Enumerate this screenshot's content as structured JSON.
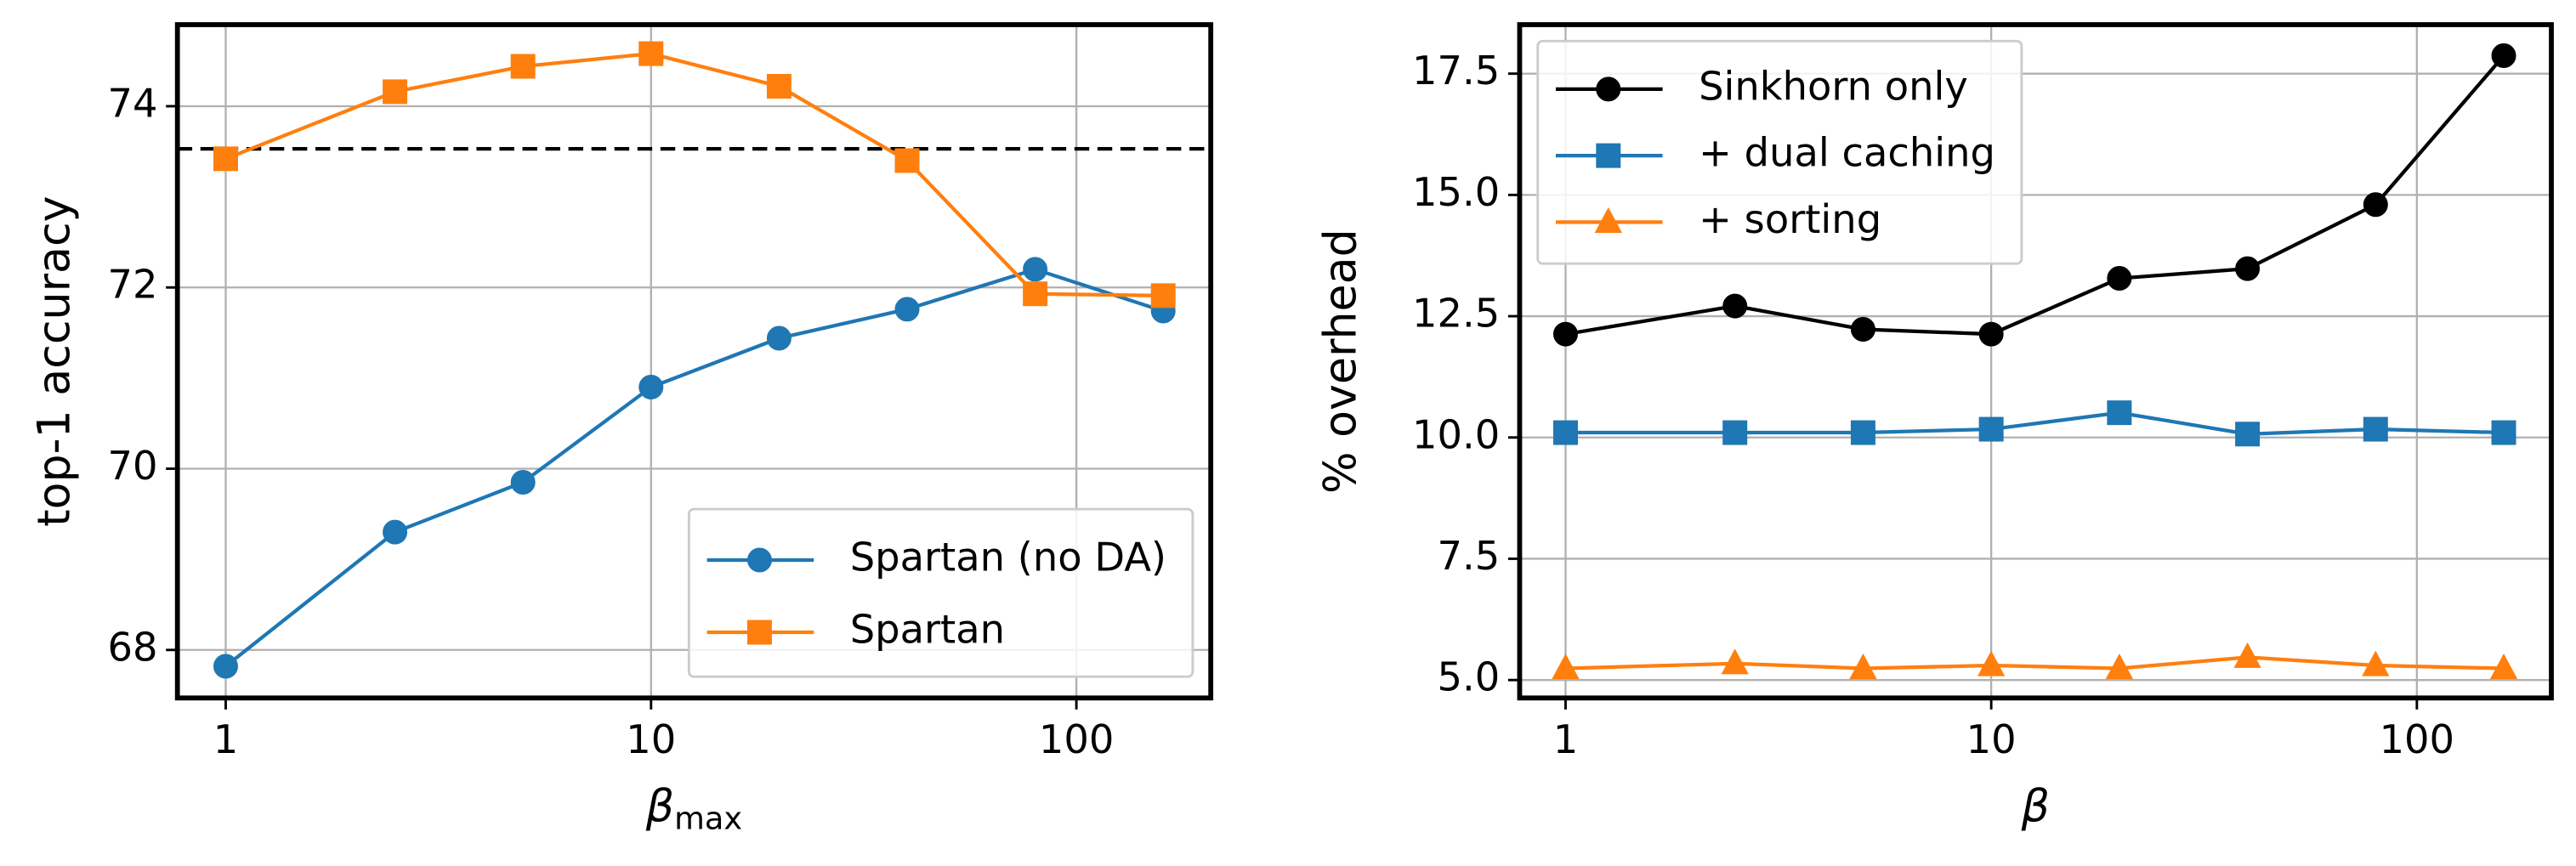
{
  "chart_data": [
    {
      "type": "line",
      "xscale": "log",
      "grid": true,
      "legend": "lower right",
      "ylabel": "top-1 accuracy",
      "xlabel": "β",
      "xlabel_subscript": "max",
      "x": [
        1,
        2.5,
        5,
        10,
        20,
        40,
        80,
        160
      ],
      "xlim": [
        0.77,
        207
      ],
      "xticks": [
        1,
        10,
        100
      ],
      "ylim": [
        67.47,
        74.9
      ],
      "yticks": [
        68,
        70,
        72,
        74
      ],
      "hline": 73.53,
      "series": [
        {
          "name": "Spartan (no DA)",
          "color": "#1f77b4",
          "marker": "o",
          "values": [
            67.82,
            69.3,
            69.85,
            70.9,
            71.44,
            71.76,
            72.2,
            71.74
          ]
        },
        {
          "name": "Spartan",
          "color": "#ff7f0e",
          "marker": "s",
          "values": [
            73.42,
            74.16,
            74.44,
            74.58,
            74.22,
            73.4,
            71.93,
            71.91
          ]
        }
      ]
    },
    {
      "type": "line",
      "xscale": "log",
      "grid": true,
      "legend": "upper left",
      "ylabel": "% overhead",
      "xlabel": "β",
      "x": [
        1,
        2.5,
        5,
        10,
        20,
        40,
        80,
        160
      ],
      "xlim": [
        0.78,
        207
      ],
      "xticks": [
        1,
        10,
        100
      ],
      "ylim": [
        4.63,
        18.51
      ],
      "yticks": [
        {
          "value": 5,
          "label": "5.0"
        },
        7.5,
        {
          "value": 10,
          "label": "10.0"
        },
        12.5,
        {
          "value": 15,
          "label": "15.0"
        },
        17.5
      ],
      "series": [
        {
          "name": "Sinkhorn only",
          "color": "#000000",
          "marker": "o",
          "values": [
            12.13,
            12.71,
            12.23,
            12.13,
            13.28,
            13.48,
            14.8,
            17.87
          ]
        },
        {
          "name": "+ dual caching",
          "color": "#1f77b4",
          "marker": "s",
          "values": [
            10.1,
            10.1,
            10.1,
            10.17,
            10.51,
            10.07,
            10.17,
            10.1
          ]
        },
        {
          "name": "+ sorting",
          "color": "#ff7f0e",
          "marker": "^",
          "values": [
            5.24,
            5.34,
            5.24,
            5.3,
            5.24,
            5.47,
            5.3,
            5.24
          ]
        }
      ]
    }
  ]
}
